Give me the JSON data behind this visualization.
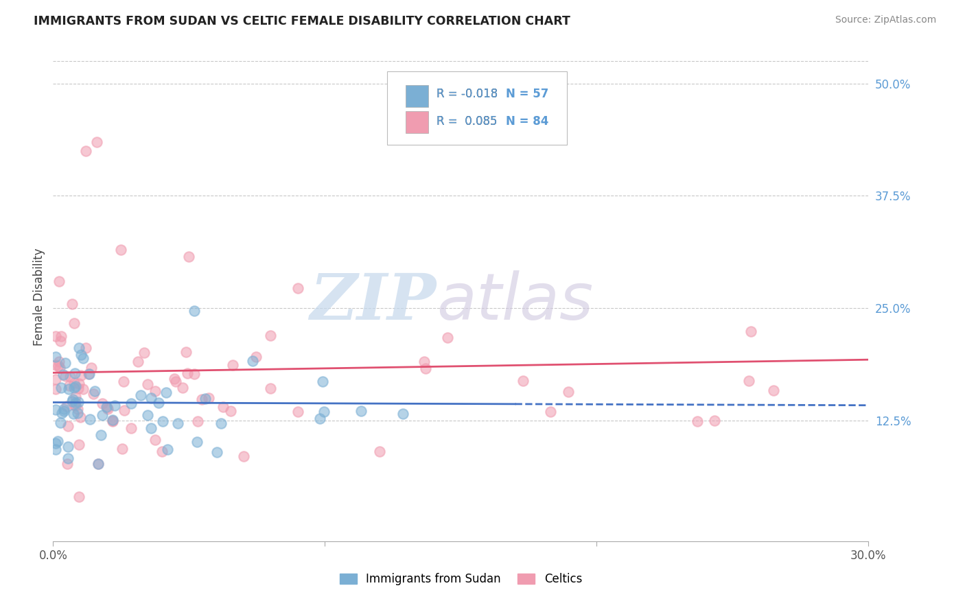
{
  "title": "IMMIGRANTS FROM SUDAN VS CELTIC FEMALE DISABILITY CORRELATION CHART",
  "source": "Source: ZipAtlas.com",
  "ylabel_label": "Female Disability",
  "legend_label1": "Immigrants from Sudan",
  "legend_label2": "Celtics",
  "R1": -0.018,
  "N1": 57,
  "R2": 0.085,
  "N2": 84,
  "color1": "#7bafd4",
  "color2": "#f09cb0",
  "line1_color": "#4472c4",
  "line2_color": "#e05070",
  "xmin": 0.0,
  "xmax": 0.3,
  "ymin": -0.01,
  "ymax": 0.535,
  "xticks": [
    0.0,
    0.3
  ],
  "xtick_labels": [
    "0.0%",
    "30.0%"
  ],
  "yticks": [
    0.125,
    0.25,
    0.375,
    0.5
  ],
  "ytick_labels": [
    "12.5%",
    "25.0%",
    "37.5%",
    "50.0%"
  ],
  "watermark_zip": "ZIP",
  "watermark_atlas": "atlas",
  "legend_R1_text": "R = -0.018",
  "legend_N1_text": "N = 57",
  "legend_R2_text": "R =  0.085",
  "legend_N2_text": "N = 84"
}
